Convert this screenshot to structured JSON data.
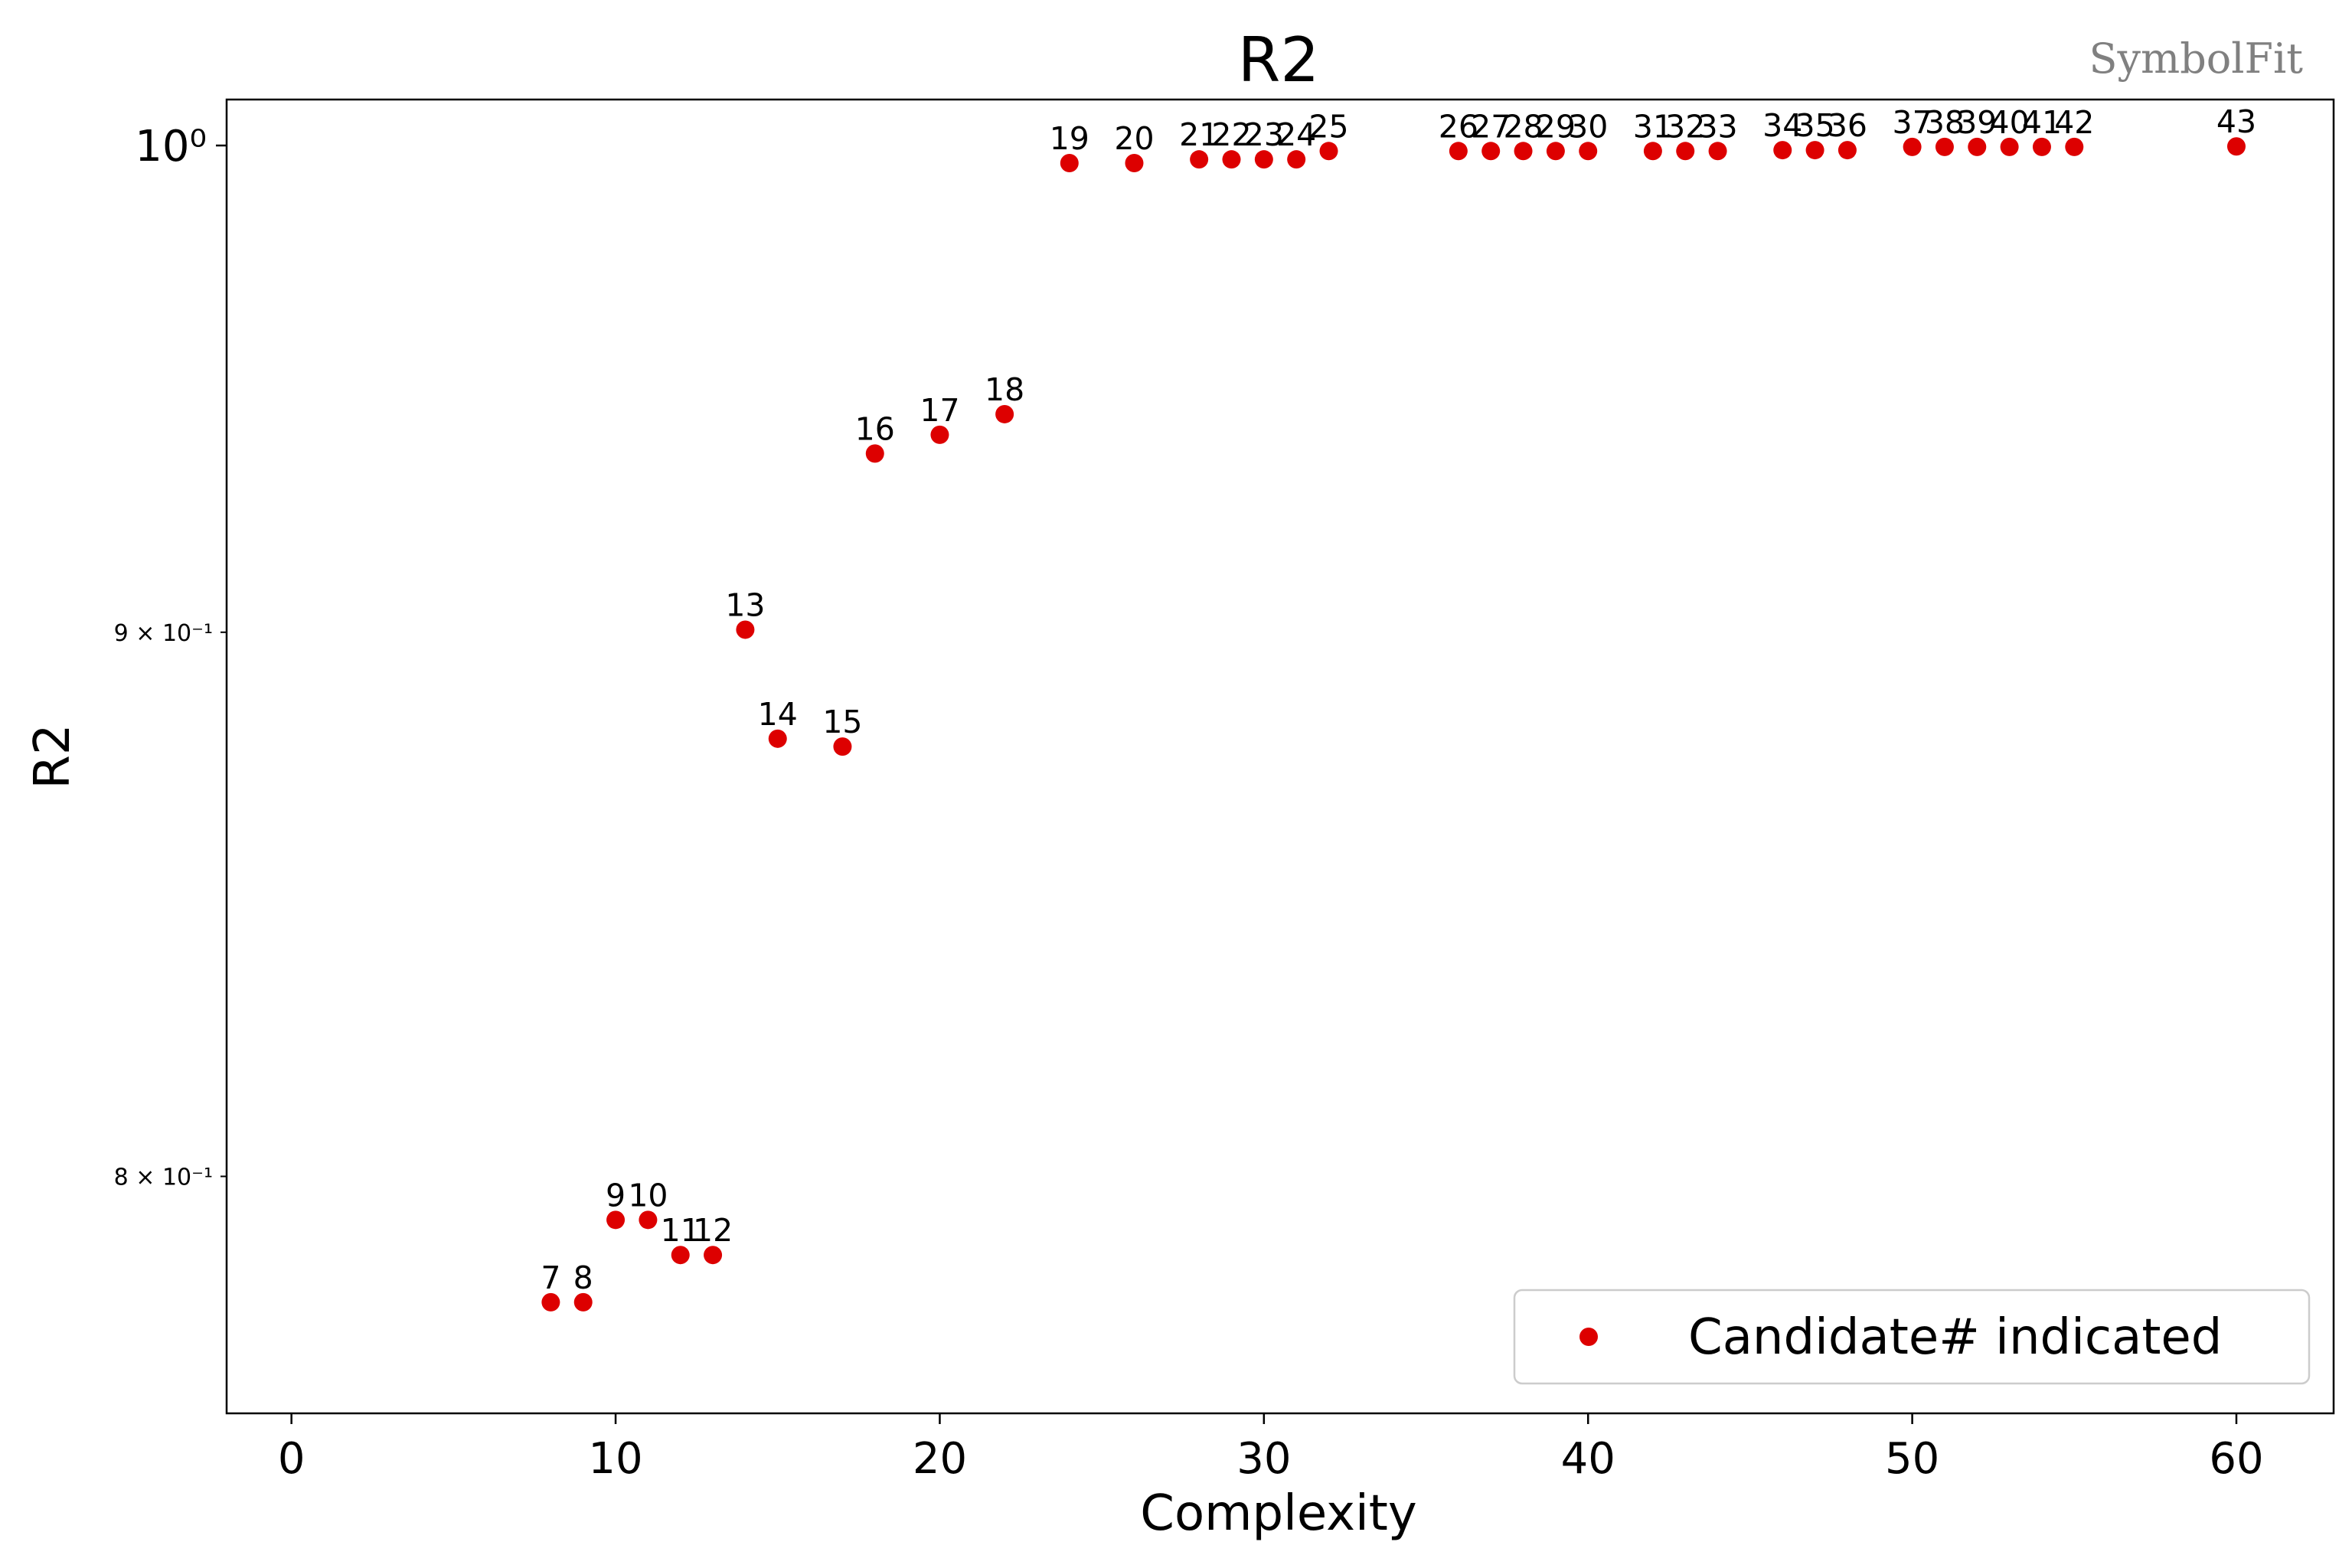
{
  "brand": "SymbolFit",
  "colors": {
    "point": "#dd0000",
    "axis": "#000000",
    "brand": "#808080"
  },
  "chart_data": {
    "type": "scatter",
    "title": "R2",
    "xlabel": "Complexity",
    "ylabel": "R2",
    "xlim": [
      -2,
      63
    ],
    "ylim": [
      0.76,
      1.01
    ],
    "yscale": "log",
    "x_ticks": [
      0,
      10,
      20,
      30,
      40,
      50,
      60
    ],
    "x_tick_labels": [
      "0",
      "10",
      "20",
      "30",
      "40",
      "50",
      "60"
    ],
    "y_major_ticks": [
      1.0
    ],
    "y_major_tick_labels": [
      "10⁰"
    ],
    "y_minor_ticks": [
      0.9,
      0.8
    ],
    "y_minor_tick_labels": [
      "9 × 10⁻¹",
      "8 × 10⁻¹"
    ],
    "legend": {
      "label": "Candidate# indicated",
      "location": "lower-right"
    },
    "series": [
      {
        "name": "Candidate# indicated",
        "points": [
          {
            "label": "7",
            "x": 8,
            "y": 0.7785
          },
          {
            "label": "8",
            "x": 9,
            "y": 0.7785
          },
          {
            "label": "9",
            "x": 10,
            "y": 0.7925
          },
          {
            "label": "10",
            "x": 11,
            "y": 0.7925
          },
          {
            "label": "11",
            "x": 12,
            "y": 0.7865
          },
          {
            "label": "12",
            "x": 13,
            "y": 0.7865
          },
          {
            "label": "13",
            "x": 14,
            "y": 0.9005
          },
          {
            "label": "14",
            "x": 15,
            "y": 0.8795
          },
          {
            "label": "15",
            "x": 17,
            "y": 0.878
          },
          {
            "label": "16",
            "x": 18,
            "y": 0.9355
          },
          {
            "label": "17",
            "x": 20,
            "y": 0.9393
          },
          {
            "label": "18",
            "x": 22,
            "y": 0.9435
          },
          {
            "label": "19",
            "x": 24,
            "y": 0.9962
          },
          {
            "label": "20",
            "x": 26,
            "y": 0.9962
          },
          {
            "label": "21",
            "x": 28,
            "y": 0.997
          },
          {
            "label": "22",
            "x": 29,
            "y": 0.997
          },
          {
            "label": "23",
            "x": 30,
            "y": 0.997
          },
          {
            "label": "24",
            "x": 31,
            "y": 0.997
          },
          {
            "label": "25",
            "x": 32,
            "y": 0.9988
          },
          {
            "label": "26",
            "x": 36,
            "y": 0.9988
          },
          {
            "label": "27",
            "x": 37,
            "y": 0.9988
          },
          {
            "label": "28",
            "x": 38,
            "y": 0.9988
          },
          {
            "label": "29",
            "x": 39,
            "y": 0.9988
          },
          {
            "label": "30",
            "x": 40,
            "y": 0.9988
          },
          {
            "label": "31",
            "x": 42,
            "y": 0.9988
          },
          {
            "label": "32",
            "x": 43,
            "y": 0.9988
          },
          {
            "label": "33",
            "x": 44,
            "y": 0.9988
          },
          {
            "label": "34",
            "x": 46,
            "y": 0.999
          },
          {
            "label": "35",
            "x": 47,
            "y": 0.999
          },
          {
            "label": "36",
            "x": 48,
            "y": 0.999
          },
          {
            "label": "37",
            "x": 50,
            "y": 0.9997
          },
          {
            "label": "38",
            "x": 51,
            "y": 0.9997
          },
          {
            "label": "39",
            "x": 52,
            "y": 0.9997
          },
          {
            "label": "40",
            "x": 53,
            "y": 0.9997
          },
          {
            "label": "41",
            "x": 54,
            "y": 0.9997
          },
          {
            "label": "42",
            "x": 55,
            "y": 0.9997
          },
          {
            "label": "43",
            "x": 60,
            "y": 0.9998
          }
        ]
      }
    ]
  }
}
